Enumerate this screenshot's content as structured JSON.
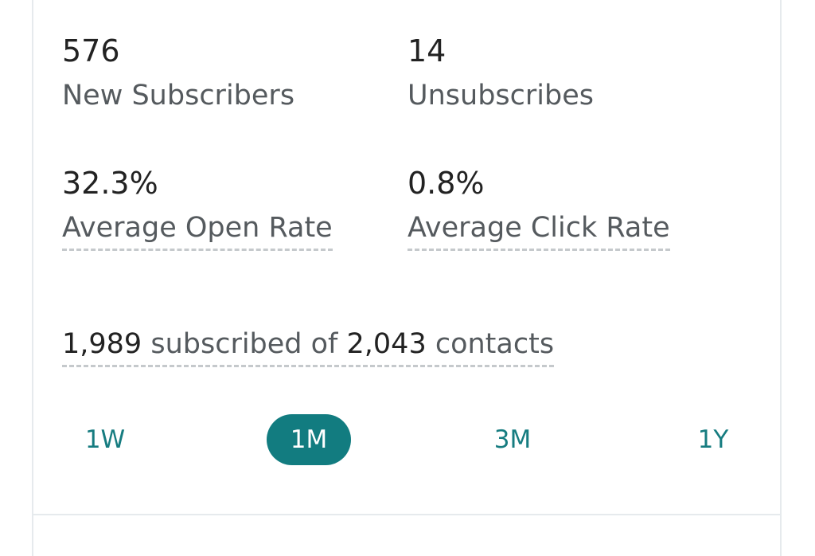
{
  "stats": {
    "new_subscribers": {
      "value": "576",
      "label": "New Subscribers"
    },
    "unsubscribes": {
      "value": "14",
      "label": "Unsubscribes"
    },
    "open_rate": {
      "value": "32.3%",
      "label": "Average Open Rate"
    },
    "click_rate": {
      "value": "0.8%",
      "label": "Average Click Rate"
    }
  },
  "summary": {
    "subscribed": "1,989",
    "subscribed_text": " subscribed of ",
    "total": "2,043",
    "total_text": " contacts"
  },
  "range_tabs": {
    "selected": "1M",
    "items": [
      "1W",
      "1M",
      "3M",
      "1Y"
    ]
  },
  "colors": {
    "accent": "#127c80",
    "card_border": "#e6eaed",
    "dashed_underline": "#c5c9cc"
  }
}
